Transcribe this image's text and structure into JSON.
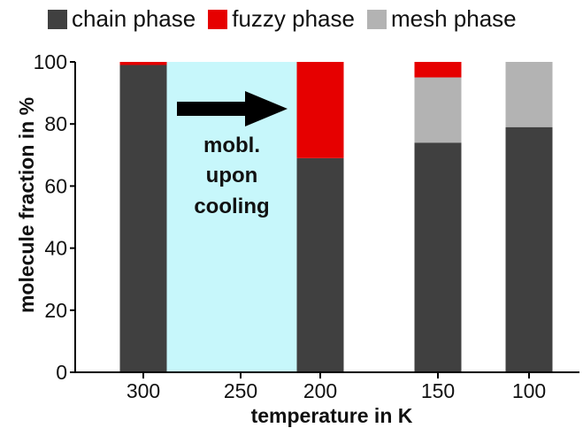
{
  "chart_data": {
    "type": "bar",
    "stacked": true,
    "xlabel": "temperature in K",
    "ylabel": "molecule fraction in %",
    "ylim": [
      0,
      100
    ],
    "yticks": [
      0,
      20,
      40,
      60,
      80,
      100
    ],
    "xticks": [
      "300",
      "250",
      "200",
      "150",
      "100"
    ],
    "categories": [
      "300",
      "200",
      "150",
      "100"
    ],
    "series": [
      {
        "name": "chain phase",
        "color": "#404040",
        "values": [
          99,
          69,
          74,
          79
        ]
      },
      {
        "name": "mesh phase",
        "color": "#b3b3b3",
        "values": [
          0,
          0,
          21,
          21
        ]
      },
      {
        "name": "fuzzy phase",
        "color": "#e60000",
        "values": [
          1,
          31,
          5,
          0
        ]
      }
    ],
    "legend_order": [
      "chain phase",
      "fuzzy phase",
      "mesh phase"
    ],
    "legend_position": "top",
    "highlight_region": {
      "from": "300",
      "to": "200",
      "color": "#c7f7fb"
    },
    "annotation": {
      "lines": [
        "mobl.",
        "upon",
        "cooling"
      ],
      "arrow": "right"
    },
    "grid": false
  }
}
